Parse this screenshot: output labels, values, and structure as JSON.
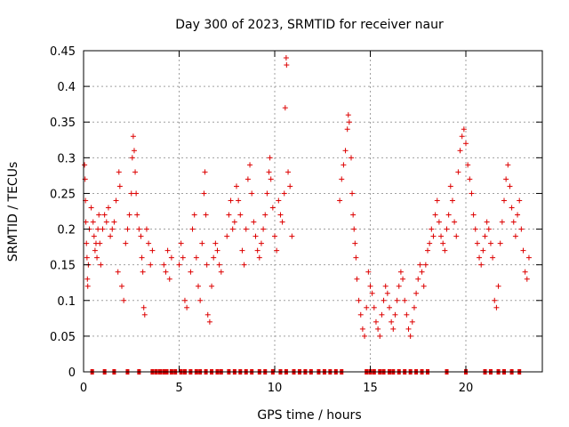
{
  "chart_data": {
    "type": "scatter",
    "title": "Day 300 of 2023, SRMTID for receiver naur",
    "xlabel": "GPS time / hours",
    "ylabel": "SRMTID / TECUs",
    "xlim": [
      0,
      24
    ],
    "ylim": [
      0,
      0.45
    ],
    "xticks": [
      0,
      5,
      10,
      15,
      20
    ],
    "yticks": [
      0,
      0.05,
      0.1,
      0.15,
      0.2,
      0.25,
      0.3,
      0.35,
      0.4,
      0.45
    ],
    "xtick_labels": [
      "0",
      "5",
      "10",
      "15",
      "20"
    ],
    "ytick_labels": [
      "0",
      "0.05",
      "0.1",
      "0.15",
      "0.2",
      "0.25",
      "0.3",
      "0.35",
      "0.4",
      "0.45"
    ],
    "grid": true,
    "marker": "plus",
    "color": "#dd0000",
    "series": [
      {
        "name": "SRMTID",
        "points": [
          [
            0.05,
            0.29
          ],
          [
            0.08,
            0.27
          ],
          [
            0.1,
            0.24
          ],
          [
            0.12,
            0.21
          ],
          [
            0.15,
            0.18
          ],
          [
            0.18,
            0.16
          ],
          [
            0.2,
            0.13
          ],
          [
            0.22,
            0.12
          ],
          [
            0.25,
            0.15
          ],
          [
            0.3,
            0.2
          ],
          [
            0.4,
            0.23
          ],
          [
            0.5,
            0.21
          ],
          [
            0.55,
            0.19
          ],
          [
            0.6,
            0.17
          ],
          [
            0.65,
            0.18
          ],
          [
            0.7,
            0.16
          ],
          [
            0.75,
            0.2
          ],
          [
            0.8,
            0.22
          ],
          [
            0.85,
            0.18
          ],
          [
            0.9,
            0.15
          ],
          [
            1.0,
            0.2
          ],
          [
            1.1,
            0.22
          ],
          [
            1.2,
            0.21
          ],
          [
            1.3,
            0.23
          ],
          [
            1.4,
            0.19
          ],
          [
            1.5,
            0.2
          ],
          [
            1.6,
            0.21
          ],
          [
            1.7,
            0.24
          ],
          [
            1.8,
            0.14
          ],
          [
            1.85,
            0.28
          ],
          [
            1.9,
            0.26
          ],
          [
            2.0,
            0.12
          ],
          [
            2.1,
            0.1
          ],
          [
            2.2,
            0.18
          ],
          [
            2.3,
            0.2
          ],
          [
            2.4,
            0.22
          ],
          [
            2.5,
            0.25
          ],
          [
            2.55,
            0.3
          ],
          [
            2.6,
            0.33
          ],
          [
            2.65,
            0.31
          ],
          [
            2.7,
            0.28
          ],
          [
            2.75,
            0.25
          ],
          [
            2.8,
            0.22
          ],
          [
            2.9,
            0.2
          ],
          [
            3.0,
            0.19
          ],
          [
            3.05,
            0.16
          ],
          [
            3.1,
            0.14
          ],
          [
            3.15,
            0.09
          ],
          [
            3.2,
            0.08
          ],
          [
            3.3,
            0.2
          ],
          [
            3.4,
            0.18
          ],
          [
            3.5,
            0.15
          ],
          [
            3.6,
            0.17
          ],
          [
            4.2,
            0.15
          ],
          [
            4.3,
            0.14
          ],
          [
            4.4,
            0.17
          ],
          [
            4.5,
            0.13
          ],
          [
            4.6,
            0.16
          ],
          [
            5.0,
            0.15
          ],
          [
            5.1,
            0.18
          ],
          [
            5.2,
            0.16
          ],
          [
            5.3,
            0.1
          ],
          [
            5.4,
            0.09
          ],
          [
            5.6,
            0.14
          ],
          [
            5.7,
            0.2
          ],
          [
            5.8,
            0.22
          ],
          [
            5.9,
            0.16
          ],
          [
            6.0,
            0.12
          ],
          [
            6.1,
            0.1
          ],
          [
            6.2,
            0.18
          ],
          [
            6.3,
            0.25
          ],
          [
            6.35,
            0.28
          ],
          [
            6.4,
            0.22
          ],
          [
            6.45,
            0.15
          ],
          [
            6.5,
            0.08
          ],
          [
            6.6,
            0.07
          ],
          [
            6.7,
            0.12
          ],
          [
            6.8,
            0.16
          ],
          [
            6.9,
            0.18
          ],
          [
            7.0,
            0.17
          ],
          [
            7.1,
            0.15
          ],
          [
            7.2,
            0.14
          ],
          [
            7.5,
            0.19
          ],
          [
            7.6,
            0.22
          ],
          [
            7.7,
            0.24
          ],
          [
            7.8,
            0.2
          ],
          [
            7.9,
            0.21
          ],
          [
            8.0,
            0.26
          ],
          [
            8.1,
            0.24
          ],
          [
            8.2,
            0.22
          ],
          [
            8.3,
            0.17
          ],
          [
            8.4,
            0.15
          ],
          [
            8.5,
            0.2
          ],
          [
            8.6,
            0.27
          ],
          [
            8.7,
            0.29
          ],
          [
            8.8,
            0.25
          ],
          [
            8.9,
            0.21
          ],
          [
            9.0,
            0.19
          ],
          [
            9.1,
            0.17
          ],
          [
            9.2,
            0.16
          ],
          [
            9.3,
            0.18
          ],
          [
            9.4,
            0.2
          ],
          [
            9.5,
            0.22
          ],
          [
            9.6,
            0.25
          ],
          [
            9.7,
            0.28
          ],
          [
            9.75,
            0.3
          ],
          [
            9.8,
            0.27
          ],
          [
            9.9,
            0.23
          ],
          [
            10.0,
            0.19
          ],
          [
            10.1,
            0.17
          ],
          [
            10.2,
            0.24
          ],
          [
            10.3,
            0.22
          ],
          [
            10.4,
            0.21
          ],
          [
            10.5,
            0.25
          ],
          [
            10.55,
            0.37
          ],
          [
            10.6,
            0.44
          ],
          [
            10.62,
            0.43
          ],
          [
            10.7,
            0.28
          ],
          [
            10.8,
            0.26
          ],
          [
            10.9,
            0.19
          ],
          [
            13.4,
            0.24
          ],
          [
            13.5,
            0.27
          ],
          [
            13.6,
            0.29
          ],
          [
            13.7,
            0.31
          ],
          [
            13.8,
            0.34
          ],
          [
            13.85,
            0.36
          ],
          [
            13.9,
            0.35
          ],
          [
            14.0,
            0.3
          ],
          [
            14.05,
            0.25
          ],
          [
            14.1,
            0.22
          ],
          [
            14.15,
            0.2
          ],
          [
            14.2,
            0.18
          ],
          [
            14.25,
            0.16
          ],
          [
            14.3,
            0.13
          ],
          [
            14.4,
            0.1
          ],
          [
            14.5,
            0.08
          ],
          [
            14.6,
            0.06
          ],
          [
            14.7,
            0.05
          ],
          [
            14.8,
            0.09
          ],
          [
            14.9,
            0.14
          ],
          [
            15.0,
            0.12
          ],
          [
            15.1,
            0.11
          ],
          [
            15.2,
            0.09
          ],
          [
            15.3,
            0.07
          ],
          [
            15.4,
            0.06
          ],
          [
            15.5,
            0.05
          ],
          [
            15.6,
            0.08
          ],
          [
            15.7,
            0.1
          ],
          [
            15.8,
            0.12
          ],
          [
            15.9,
            0.11
          ],
          [
            16.0,
            0.09
          ],
          [
            16.1,
            0.07
          ],
          [
            16.2,
            0.06
          ],
          [
            16.3,
            0.08
          ],
          [
            16.4,
            0.1
          ],
          [
            16.5,
            0.12
          ],
          [
            16.6,
            0.14
          ],
          [
            16.7,
            0.13
          ],
          [
            16.8,
            0.1
          ],
          [
            16.9,
            0.08
          ],
          [
            17.0,
            0.06
          ],
          [
            17.1,
            0.05
          ],
          [
            17.2,
            0.07
          ],
          [
            17.3,
            0.09
          ],
          [
            17.4,
            0.11
          ],
          [
            17.5,
            0.13
          ],
          [
            17.6,
            0.15
          ],
          [
            17.7,
            0.14
          ],
          [
            17.8,
            0.12
          ],
          [
            17.9,
            0.15
          ],
          [
            18.0,
            0.17
          ],
          [
            18.1,
            0.18
          ],
          [
            18.2,
            0.2
          ],
          [
            18.3,
            0.19
          ],
          [
            18.4,
            0.22
          ],
          [
            18.5,
            0.24
          ],
          [
            18.6,
            0.21
          ],
          [
            18.7,
            0.19
          ],
          [
            18.8,
            0.18
          ],
          [
            18.9,
            0.17
          ],
          [
            19.0,
            0.2
          ],
          [
            19.1,
            0.22
          ],
          [
            19.2,
            0.26
          ],
          [
            19.3,
            0.24
          ],
          [
            19.4,
            0.21
          ],
          [
            19.5,
            0.19
          ],
          [
            19.6,
            0.28
          ],
          [
            19.7,
            0.31
          ],
          [
            19.8,
            0.33
          ],
          [
            19.9,
            0.34
          ],
          [
            20.0,
            0.32
          ],
          [
            20.1,
            0.29
          ],
          [
            20.2,
            0.27
          ],
          [
            20.3,
            0.25
          ],
          [
            20.4,
            0.22
          ],
          [
            20.5,
            0.2
          ],
          [
            20.6,
            0.18
          ],
          [
            20.7,
            0.16
          ],
          [
            20.8,
            0.15
          ],
          [
            20.9,
            0.17
          ],
          [
            21.0,
            0.19
          ],
          [
            21.1,
            0.21
          ],
          [
            21.2,
            0.2
          ],
          [
            21.3,
            0.18
          ],
          [
            21.4,
            0.16
          ],
          [
            21.5,
            0.1
          ],
          [
            21.6,
            0.09
          ],
          [
            21.7,
            0.12
          ],
          [
            21.8,
            0.18
          ],
          [
            21.9,
            0.21
          ],
          [
            22.0,
            0.24
          ],
          [
            22.1,
            0.27
          ],
          [
            22.2,
            0.29
          ],
          [
            22.3,
            0.26
          ],
          [
            22.4,
            0.23
          ],
          [
            22.5,
            0.21
          ],
          [
            22.6,
            0.19
          ],
          [
            22.7,
            0.22
          ],
          [
            22.8,
            0.24
          ],
          [
            22.9,
            0.2
          ],
          [
            23.0,
            0.17
          ],
          [
            23.1,
            0.14
          ],
          [
            23.2,
            0.13
          ],
          [
            23.3,
            0.16
          ]
        ]
      }
    ],
    "zero_points_x": [
      0.45,
      1.1,
      1.6,
      2.3,
      2.9,
      3.6,
      3.8,
      4.0,
      4.2,
      4.35,
      4.6,
      4.8,
      5.1,
      5.3,
      5.6,
      5.9,
      6.1,
      6.4,
      6.7,
      7.0,
      7.2,
      7.6,
      7.9,
      8.2,
      8.5,
      8.8,
      9.2,
      9.5,
      9.9,
      10.3,
      10.6,
      11.0,
      11.3,
      11.6,
      11.9,
      12.3,
      12.6,
      12.9,
      13.2,
      13.5,
      14.8,
      15.0,
      15.2,
      15.5,
      15.7,
      16.0,
      16.2,
      16.5,
      16.8,
      17.1,
      17.4,
      17.7,
      18.0,
      19.0,
      20.0,
      21.0,
      21.3,
      21.7,
      22.0,
      22.4,
      22.8
    ]
  }
}
